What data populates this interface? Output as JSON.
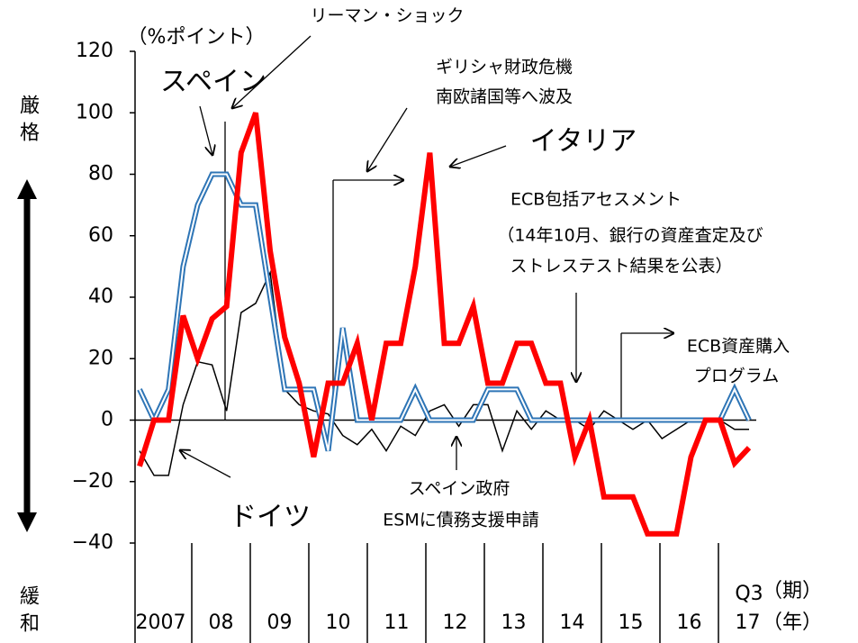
{
  "chart_data": {
    "type": "line",
    "y_label": "（%ポイント）",
    "y_direction_labels": [
      "厳格",
      "緩和"
    ],
    "categories": [
      null,
      null,
      null,
      null,
      null,
      null,
      null,
      null,
      null,
      null,
      null,
      null,
      null,
      null,
      null,
      null,
      null,
      null,
      null,
      null,
      null,
      null,
      null,
      null,
      null,
      null,
      null,
      null,
      null,
      null,
      null,
      null,
      null,
      null,
      null,
      null,
      null,
      null,
      null,
      null,
      null,
      null,
      "Q3"
    ],
    "years": [
      "2007",
      "08",
      "09",
      "10",
      "11",
      "12",
      "13",
      "14",
      "15",
      "16",
      "17"
    ],
    "x_unit_labels": [
      "（期）",
      "（年）"
    ],
    "ylim": [
      -40,
      120
    ],
    "yticks": [
      {
        "value": -40,
        "label": "−40"
      },
      {
        "value": -20,
        "label": "−20"
      },
      0,
      20,
      40,
      60,
      80,
      100,
      120
    ],
    "series": [
      {
        "name": "ドイツ",
        "color": "#000000",
        "style": "thin",
        "values": [
          -10,
          -18,
          -18,
          5,
          19,
          18,
          3,
          35,
          38,
          48,
          10,
          5,
          3,
          2,
          -5,
          -8,
          -3,
          -10,
          -2,
          -5,
          3,
          5,
          -2,
          5,
          5,
          -10,
          3,
          -3,
          3,
          0,
          0,
          -3,
          3,
          0,
          -3,
          0,
          -6,
          -3,
          0,
          0,
          0,
          -3,
          -3
        ]
      },
      {
        "name": "スペイン",
        "color": "#2e75b6",
        "style": "double",
        "values": [
          10,
          0,
          10,
          50,
          70,
          80,
          80,
          70,
          70,
          40,
          10,
          10,
          10,
          -10,
          30,
          0,
          0,
          0,
          0,
          10,
          0,
          0,
          0,
          0,
          10,
          10,
          10,
          0,
          0,
          0,
          0,
          0,
          0,
          0,
          0,
          0,
          0,
          0,
          0,
          0,
          0,
          10,
          0
        ]
      },
      {
        "name": "イタリア",
        "color": "#ff0000",
        "style": "thick",
        "values": [
          -15,
          0,
          0,
          34,
          20,
          33,
          37,
          87,
          100,
          55,
          27,
          12,
          -12,
          12,
          12,
          25,
          0,
          25,
          25,
          50,
          87,
          25,
          25,
          37,
          12,
          12,
          25,
          25,
          12,
          12,
          -12,
          0,
          -25,
          -25,
          -25,
          -37,
          -37,
          -37,
          -12,
          0,
          0,
          -14,
          -9
        ]
      }
    ],
    "annotations": [
      "リーマン・ショック",
      "ギリシャ財政危機",
      "南欧諸国等へ波及",
      "ECB包括アセスメント",
      "（14年10月、銀行の資産査定及び",
      "ストレステスト結果を公表）",
      "ECB資産購入",
      "プログラム",
      "スペイン政府",
      "ESMに債務支援申請"
    ]
  }
}
